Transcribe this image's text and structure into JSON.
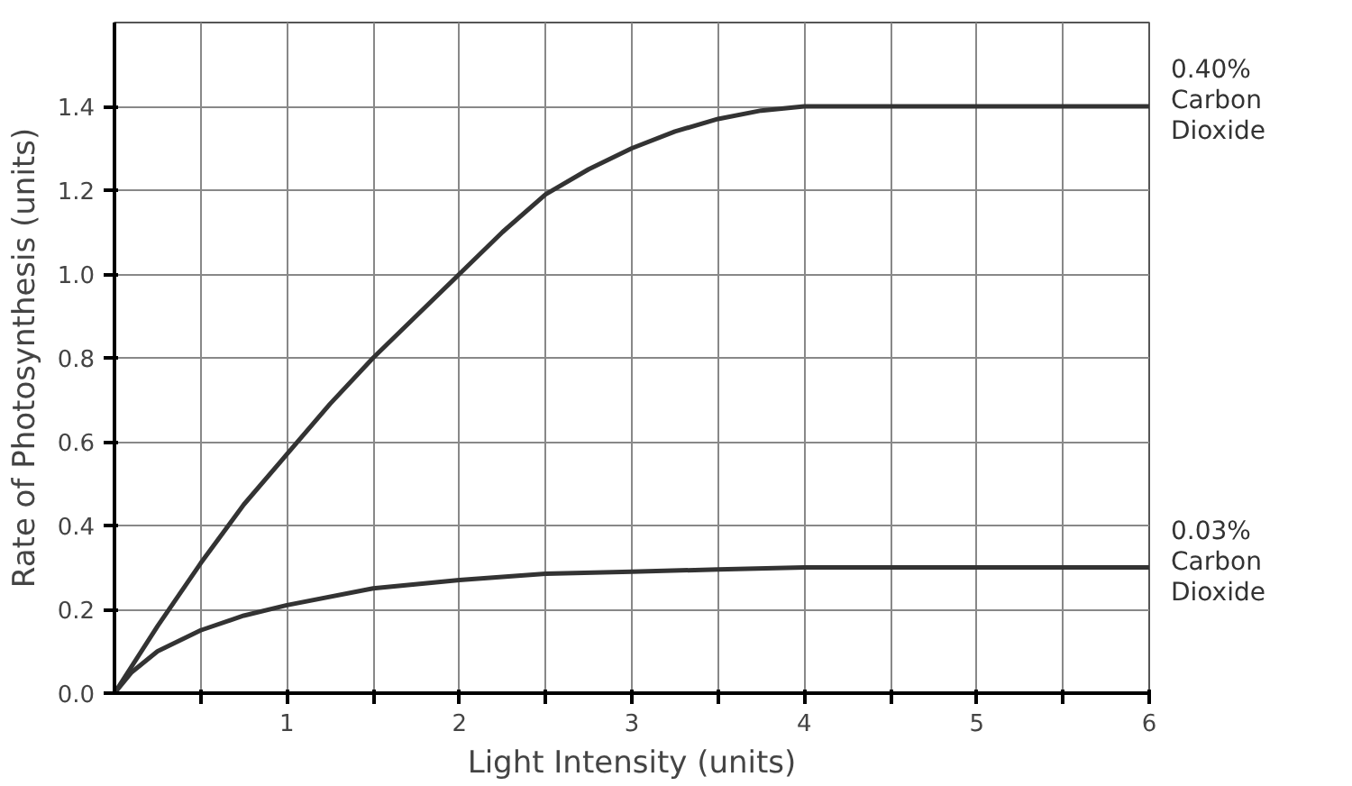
{
  "chart_data": {
    "type": "line",
    "xlabel": "Light Intensity (units)",
    "ylabel": "Rate of Photosynthesis (units)",
    "xlim": [
      0,
      6
    ],
    "ylim": [
      0,
      1.6
    ],
    "xticks": [
      {
        "value": 0.5,
        "label": null
      },
      1,
      {
        "value": 1.5,
        "label": null
      },
      2,
      {
        "value": 2.5,
        "label": null
      },
      3,
      {
        "value": 3.5,
        "label": null
      },
      4,
      {
        "value": 4.5,
        "label": null
      },
      5,
      {
        "value": 5.5,
        "label": null
      },
      6
    ],
    "yticks": [
      {
        "value": 0,
        "label": "0.0"
      },
      0.2,
      0.4,
      0.6,
      0.8,
      {
        "value": 1,
        "label": "1.0"
      },
      1.2,
      1.4
    ],
    "grid": true,
    "line_style": "solid",
    "series": [
      {
        "name": "0.40% Carbon Dioxide",
        "color": "#333333",
        "x": [
          0,
          0.25,
          0.5,
          0.75,
          1,
          1.25,
          1.5,
          1.75,
          2,
          2.25,
          2.5,
          2.75,
          3,
          3.25,
          3.5,
          3.75,
          4,
          5,
          6
        ],
        "values": [
          0,
          0.16,
          0.31,
          0.45,
          0.57,
          0.69,
          0.8,
          0.9,
          1.0,
          1.1,
          1.19,
          1.25,
          1.3,
          1.34,
          1.37,
          1.39,
          1.4,
          1.4,
          1.4
        ]
      },
      {
        "name": "0.03% Carbon Dioxide",
        "color": "#333333",
        "x": [
          0,
          0.1,
          0.25,
          0.5,
          0.75,
          1,
          1.5,
          2,
          2.5,
          3,
          3.5,
          4,
          5,
          6
        ],
        "values": [
          0,
          0.05,
          0.1,
          0.15,
          0.185,
          0.21,
          0.25,
          0.27,
          0.285,
          0.29,
          0.295,
          0.3,
          0.3,
          0.3
        ]
      }
    ]
  }
}
